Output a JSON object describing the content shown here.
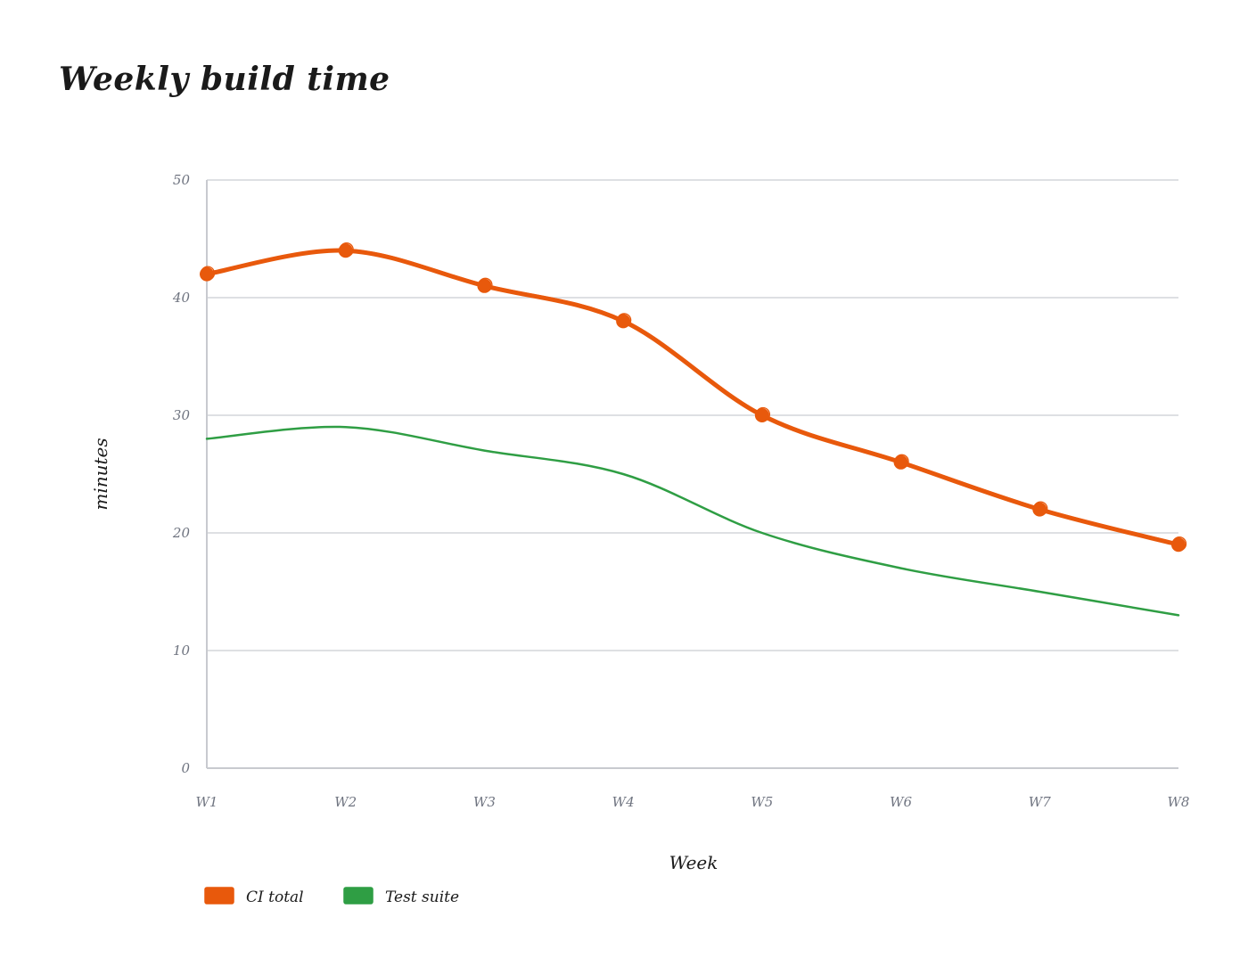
{
  "chart_data": {
    "type": "line",
    "title": "Weekly build time",
    "xlabel": "Week",
    "ylabel": "minutes",
    "categories": [
      "W1",
      "W2",
      "W3",
      "W4",
      "W5",
      "W6",
      "W7",
      "W8"
    ],
    "ylim": [
      0,
      50
    ],
    "yticks": [
      0,
      10,
      20,
      30,
      40,
      50
    ],
    "grid": true,
    "legend_position": "bottom-left",
    "series": [
      {
        "name": "CI total",
        "color": "#e8590c",
        "markers": true,
        "values": [
          42,
          44,
          41,
          38,
          30,
          26,
          22,
          19
        ]
      },
      {
        "name": "Test suite",
        "color": "#2f9e44",
        "markers": false,
        "values": [
          28,
          29,
          27,
          25,
          20,
          17,
          15,
          13
        ]
      }
    ]
  }
}
